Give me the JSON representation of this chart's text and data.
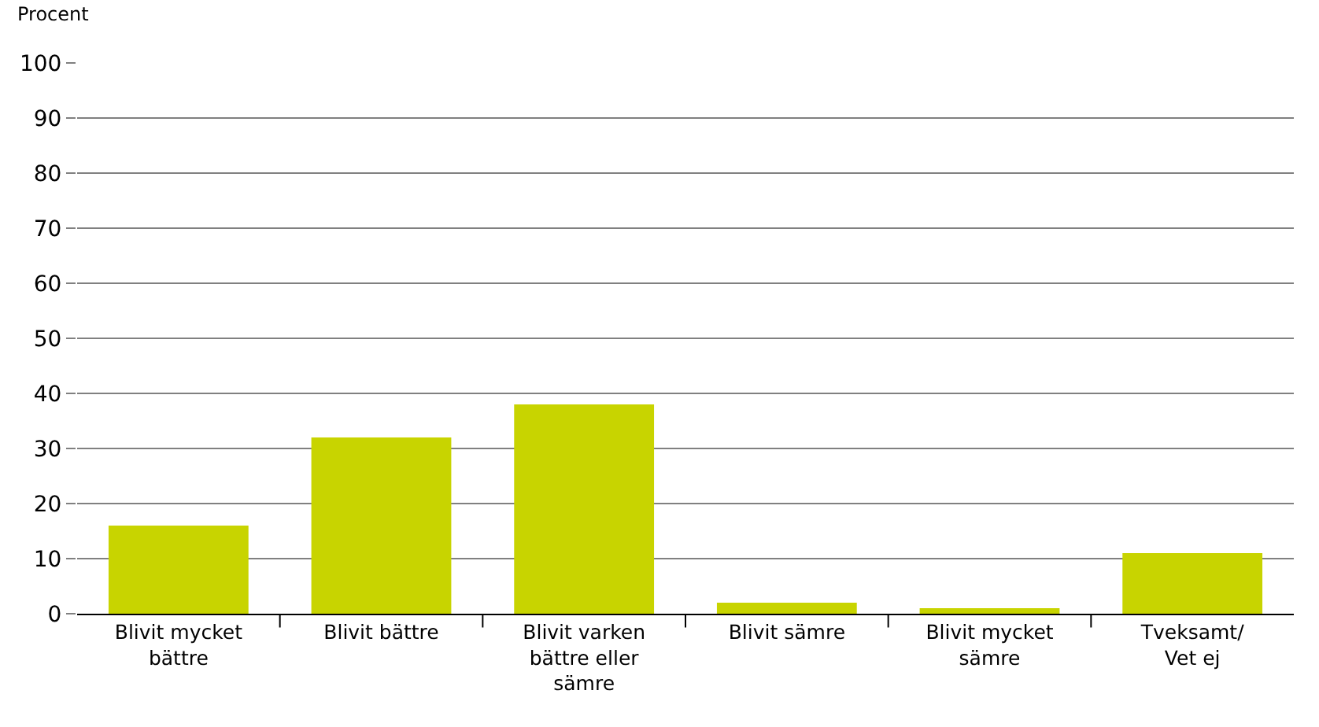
{
  "chart_data": {
    "type": "bar",
    "ylabel": "Procent",
    "categories": [
      "Blivit mycket\nbättre",
      "Blivit bättre",
      "Blivit varken\nbättre eller\nsämre",
      "Blivit sämre",
      "Blivit mycket\nsämre",
      "Tveksamt/\nVet ej"
    ],
    "values": [
      16,
      32,
      38,
      2,
      1,
      11
    ],
    "color": "#c8d400",
    "ylim": [
      0,
      100
    ],
    "yticks": [
      0,
      10,
      20,
      30,
      40,
      50,
      60,
      70,
      80,
      90,
      100
    ],
    "grid": "y"
  }
}
